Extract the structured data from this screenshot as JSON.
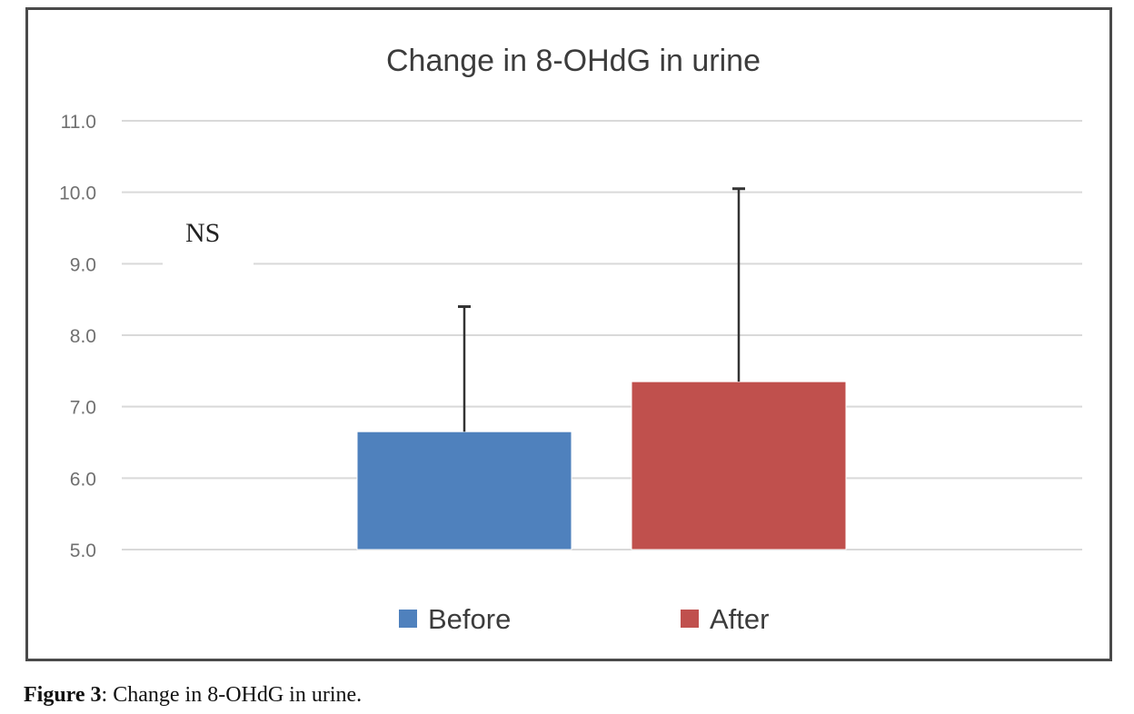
{
  "chart_data": {
    "type": "bar",
    "title": "Change in 8-OHdG in urine",
    "categories": [
      "Before",
      "After"
    ],
    "values": [
      6.65,
      7.35
    ],
    "error_upper": [
      8.4,
      10.05
    ],
    "colors": [
      "#4f81bd",
      "#c0504d"
    ],
    "ylim": [
      5.0,
      11.0
    ],
    "yticks": [
      "5.0",
      "6.0",
      "7.0",
      "8.0",
      "9.0",
      "10.0",
      "11.0"
    ],
    "grid": true,
    "legend": {
      "position": "bottom",
      "entries": [
        {
          "label": "Before",
          "color": "#4f81bd"
        },
        {
          "label": "After",
          "color": "#c0504d"
        }
      ]
    },
    "annotation": "NS"
  },
  "caption": {
    "label": "Figure 3",
    "text": ": Change in 8-OHdG in urine."
  }
}
